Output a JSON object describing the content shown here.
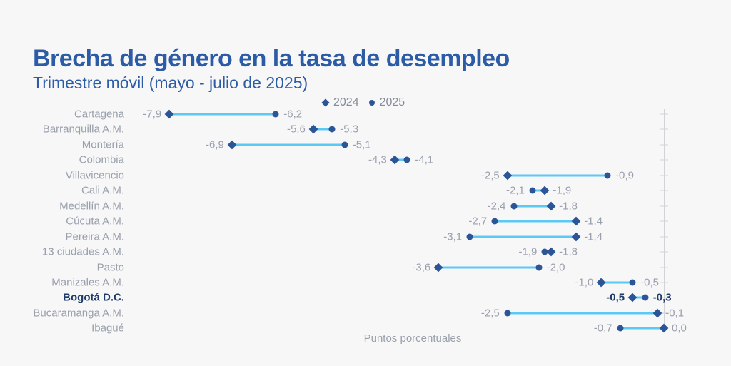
{
  "header": {
    "title": "Brecha de género en la tasa de desempleo",
    "subtitle": "Trimestre móvil (mayo - julio de 2025)"
  },
  "legend": {
    "items": [
      {
        "label": "2024",
        "marker": "diamond"
      },
      {
        "label": "2025",
        "marker": "circle"
      }
    ]
  },
  "chart_data": {
    "type": "dumbbell",
    "title": "Brecha de género en la tasa de desempleo",
    "subtitle": "Trimestre móvil (mayo - julio de 2025)",
    "xlabel": "Puntos porcentuales",
    "x_zero_axis": "vertical gray line with ticks at value 0, right side",
    "xlim": [
      -8.6,
      0.4
    ],
    "decimal_separator": ",",
    "highlight_category": "Bogotá D.C.",
    "legend_position": "top-center",
    "categories": [
      "Cartagena",
      "Barranquilla A.M.",
      "Montería",
      "Colombia",
      "Villavicencio",
      "Cali A.M.",
      "Medellín A.M.",
      "Cúcuta A.M.",
      "Pereira A.M.",
      "13 ciudades A.M.",
      "Pasto",
      "Manizales A.M.",
      "Bogotá D.C.",
      "Bucaramanga A.M.",
      "Ibagué"
    ],
    "series": [
      {
        "name": "2024",
        "marker": "diamond",
        "values": [
          -7.9,
          -5.6,
          -6.9,
          -4.3,
          -2.5,
          -1.9,
          -1.8,
          -1.4,
          -1.4,
          -1.8,
          -3.6,
          -1.0,
          -0.5,
          -0.1,
          0.0
        ]
      },
      {
        "name": "2025",
        "marker": "circle",
        "values": [
          -6.2,
          -5.3,
          -5.1,
          -4.1,
          -0.9,
          -2.1,
          -2.4,
          -2.7,
          -3.1,
          -1.9,
          -2.0,
          -0.5,
          -0.3,
          -2.5,
          -0.7
        ]
      }
    ]
  },
  "colors": {
    "accent_blue": "#2d5ca6",
    "marker_blue": "#2b5597",
    "connector_line": "#5bc9f6",
    "label_gray": "#99a0ab",
    "highlight_navy": "#1e3a66",
    "axis_gray": "#d2d3d8",
    "background": "#f7f7f8"
  }
}
